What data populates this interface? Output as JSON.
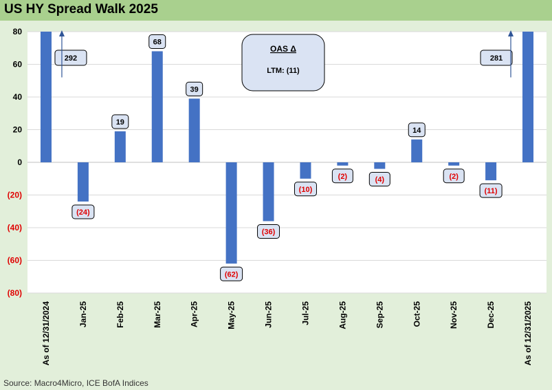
{
  "title": "US HY Spread Walk 2025",
  "source": "Source: Macro4Micro, ICE BofA Indices",
  "colors": {
    "bar": "#4472c4",
    "negative_text": "#e00000",
    "label_fill": "#dae3f3",
    "title_bg": "#a9d08e",
    "panel_bg": "#e2efda"
  },
  "chart_data": {
    "type": "bar",
    "subtype": "waterfall",
    "ylim": [
      -80,
      80
    ],
    "yticks": [
      80,
      60,
      40,
      20,
      0,
      -20,
      -40,
      -60,
      -80
    ],
    "ytick_labels": [
      "80",
      "60",
      "40",
      "20",
      "0",
      "(20)",
      "(40)",
      "(60)",
      "(80)"
    ],
    "categories": [
      "As of 12/31/2024",
      "Jan-25",
      "Feb-25",
      "Mar-25",
      "Apr-25",
      "May-25",
      "Jun-25",
      "Jul-25",
      "Aug-25",
      "Sep-25",
      "Oct-25",
      "Nov-25",
      "Dec-25",
      "As of 12/31/2025"
    ],
    "values": [
      292,
      -24,
      19,
      68,
      39,
      -62,
      -36,
      -10,
      -2,
      -4,
      14,
      -2,
      -11,
      281
    ],
    "value_labels": [
      "292",
      "(24)",
      "19",
      "68",
      "39",
      "(62)",
      "(36)",
      "(10)",
      "(2)",
      "(4)",
      "14",
      "(2)",
      "(11)",
      "281"
    ],
    "annotation": {
      "title": "OAS Δ",
      "text": "LTM: (11)"
    }
  }
}
